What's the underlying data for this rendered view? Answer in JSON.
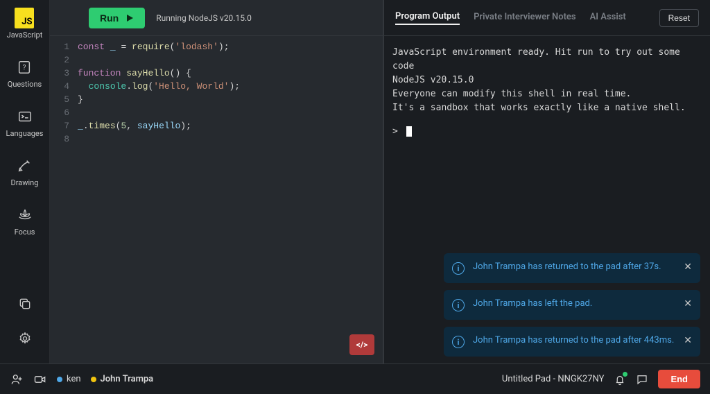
{
  "colors": {
    "bg": "#1a1d21",
    "editor_bg": "#262a2f",
    "border": "#33373c",
    "run_btn": "#2ecc71",
    "end_btn": "#e74c3c",
    "toast_bg": "#0e2a3d",
    "toast_text": "#4fa8e8",
    "js_badge": "#f7df1e",
    "code_tag": "#b03a3a"
  },
  "sidebar": {
    "items": [
      {
        "icon": "js",
        "label": "JavaScript"
      },
      {
        "icon": "questions",
        "label": "Questions"
      },
      {
        "icon": "terminal",
        "label": "Languages"
      },
      {
        "icon": "pencil",
        "label": "Drawing"
      },
      {
        "icon": "lotus",
        "label": "Focus"
      }
    ],
    "bottom": [
      {
        "icon": "copy"
      },
      {
        "icon": "gear"
      }
    ]
  },
  "toolbar": {
    "run_label": "Run",
    "status": "Running NodeJS v20.15.0"
  },
  "code": {
    "lines": [
      {
        "n": 1,
        "tokens": [
          [
            "kw",
            "const"
          ],
          [
            "punc",
            " "
          ],
          [
            "id",
            "_"
          ],
          [
            "punc",
            " = "
          ],
          [
            "fn",
            "require"
          ],
          [
            "punc",
            "("
          ],
          [
            "str",
            "'lodash'"
          ],
          [
            "punc",
            ");"
          ]
        ]
      },
      {
        "n": 2,
        "tokens": []
      },
      {
        "n": 3,
        "tokens": [
          [
            "kw",
            "function"
          ],
          [
            "punc",
            " "
          ],
          [
            "fn",
            "sayHello"
          ],
          [
            "punc",
            "() {"
          ]
        ]
      },
      {
        "n": 4,
        "tokens": [
          [
            "punc",
            "  "
          ],
          [
            "obj",
            "console"
          ],
          [
            "punc",
            "."
          ],
          [
            "fn",
            "log"
          ],
          [
            "punc",
            "("
          ],
          [
            "str",
            "'Hello, World'"
          ],
          [
            "punc",
            ");"
          ]
        ]
      },
      {
        "n": 5,
        "tokens": [
          [
            "punc",
            "}"
          ]
        ]
      },
      {
        "n": 6,
        "tokens": []
      },
      {
        "n": 7,
        "tokens": [
          [
            "id",
            "_"
          ],
          [
            "punc",
            "."
          ],
          [
            "fn",
            "times"
          ],
          [
            "punc",
            "("
          ],
          [
            "num",
            "5"
          ],
          [
            "punc",
            ", "
          ],
          [
            "id",
            "sayHello"
          ],
          [
            "punc",
            ");"
          ]
        ]
      },
      {
        "n": 8,
        "tokens": []
      }
    ]
  },
  "output": {
    "tabs": [
      {
        "label": "Program Output",
        "active": true
      },
      {
        "label": "Private Interviewer Notes",
        "active": false
      },
      {
        "label": "AI Assist",
        "active": false
      }
    ],
    "reset_label": "Reset",
    "console_lines": [
      "JavaScript environment ready. Hit run to try out some code",
      "NodeJS v20.15.0",
      "Everyone can modify this shell in real time.",
      "It's a sandbox that works exactly like a native shell."
    ],
    "prompt": ">"
  },
  "toasts": [
    {
      "text": "John Trampa has returned to the pad after 37s."
    },
    {
      "text": "John Trampa has left the pad."
    },
    {
      "text": "John Trampa has returned to the pad after 443ms."
    }
  ],
  "bottom": {
    "participants": [
      {
        "name": "ken",
        "color": "#4fa8e8",
        "bold": false
      },
      {
        "name": "John Trampa",
        "color": "#f1c40f",
        "bold": true
      }
    ],
    "pad_title": "Untitled Pad - NNGK27NY",
    "end_label": "End"
  }
}
